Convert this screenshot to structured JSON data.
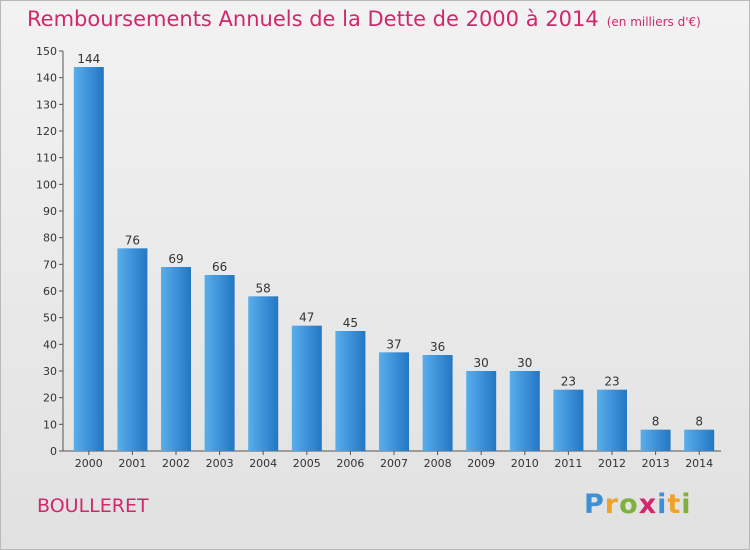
{
  "logo": "Proxiti",
  "commune": "BOULLERET",
  "chart_data": {
    "type": "bar",
    "title": "Remboursements Annuels de la Dette de 2000 à 2014",
    "subtitle": "(en milliers d'€)",
    "categories": [
      "2000",
      "2001",
      "2002",
      "2003",
      "2004",
      "2005",
      "2006",
      "2007",
      "2008",
      "2009",
      "2010",
      "2011",
      "2012",
      "2013",
      "2014"
    ],
    "values": [
      144,
      76,
      69,
      66,
      58,
      47,
      45,
      37,
      36,
      30,
      30,
      23,
      23,
      8,
      8
    ],
    "ylim": [
      0,
      150
    ],
    "yticks": [
      0,
      10,
      20,
      30,
      40,
      50,
      60,
      70,
      80,
      90,
      100,
      110,
      120,
      130,
      140,
      150
    ],
    "grid": false,
    "legend": "none",
    "bar_color": "#3a8fd8"
  }
}
